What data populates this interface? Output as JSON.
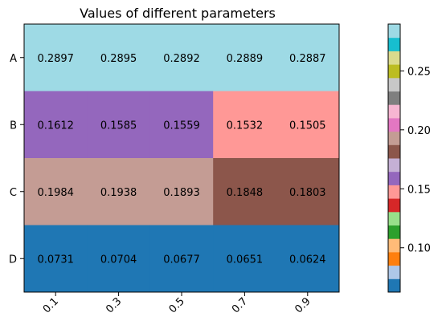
{
  "chart_data": {
    "type": "heatmap",
    "title": "Values of different parameters",
    "x": [
      "0.1",
      "0.3",
      "0.5",
      "0.7",
      "0.9"
    ],
    "y": [
      "A",
      "B",
      "C",
      "D"
    ],
    "values": [
      [
        0.2897,
        0.2895,
        0.2892,
        0.2889,
        0.2887
      ],
      [
        0.1612,
        0.1585,
        0.1559,
        0.1532,
        0.1505
      ],
      [
        0.1984,
        0.1938,
        0.1893,
        0.1848,
        0.1803
      ],
      [
        0.0731,
        0.0704,
        0.0677,
        0.0651,
        0.0624
      ]
    ],
    "value_labels": [
      [
        "0.2897",
        "0.2895",
        "0.2892",
        "0.2889",
        "0.2887"
      ],
      [
        "0.1612",
        "0.1585",
        "0.1559",
        "0.1532",
        "0.1505"
      ],
      [
        "0.1984",
        "0.1938",
        "0.1893",
        "0.1848",
        "0.1803"
      ],
      [
        "0.0731",
        "0.0704",
        "0.0677",
        "0.0651",
        "0.0624"
      ]
    ],
    "colorbar": {
      "range": [
        0.0624,
        0.2897
      ],
      "ticks": [
        0.1,
        0.15,
        0.2,
        0.25
      ],
      "tick_labels": [
        "0.10",
        "0.15",
        "0.20",
        "0.25"
      ],
      "colormap": "tab20",
      "colors": [
        "#1f77b4",
        "#aec7e8",
        "#ff7f0e",
        "#ffbb78",
        "#2ca02c",
        "#98df8a",
        "#d62728",
        "#ff9896",
        "#9467bd",
        "#c5b0d5",
        "#8c564b",
        "#c49c94",
        "#e377c2",
        "#f7b6d2",
        "#7f7f7f",
        "#c7c7c7",
        "#bcbd22",
        "#dbdb8d",
        "#17becf",
        "#9edae5"
      ]
    }
  }
}
